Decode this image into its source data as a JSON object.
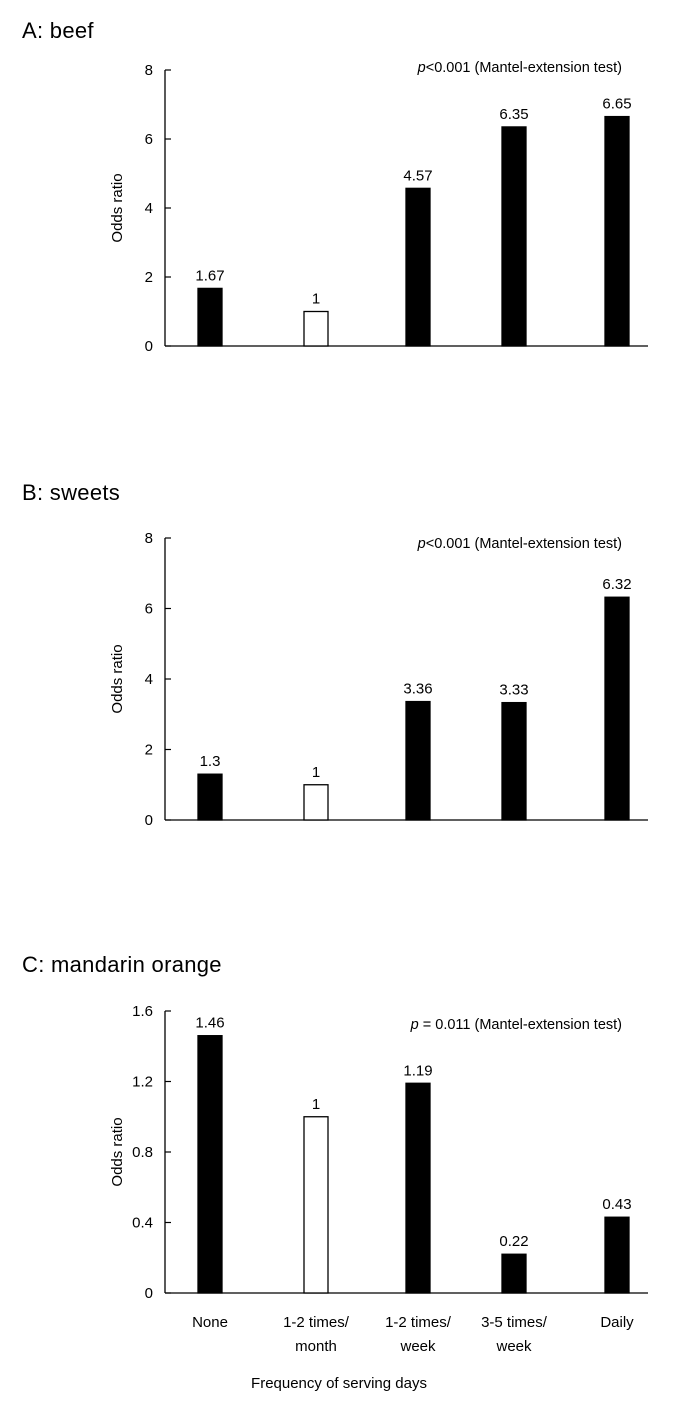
{
  "chart_data": [
    {
      "type": "bar",
      "title": "A: beef",
      "annotation_italic": "p",
      "annotation_rest": "<0.001 (Mantel-extension test)",
      "ylabel": "Odds ratio",
      "xlabel": "",
      "ylim": [
        0,
        8
      ],
      "yticks": [
        "0",
        "2",
        "4",
        "6",
        "8"
      ],
      "ytick_values": [
        0,
        2,
        4,
        6,
        8
      ],
      "categories": [
        "None",
        "1-2 times/ month",
        "1-2 times/ week",
        "3-5 times/ week",
        "Daily"
      ],
      "show_categories": false,
      "values": [
        1.67,
        1,
        4.57,
        6.35,
        6.65
      ],
      "value_labels": [
        "1.67",
        "1",
        "4.57",
        "6.35",
        "6.65"
      ],
      "bar_fill": [
        "#000000",
        "#ffffff",
        "#000000",
        "#000000",
        "#000000"
      ]
    },
    {
      "type": "bar",
      "title": "B: sweets",
      "annotation_italic": "p",
      "annotation_rest": "<0.001 (Mantel-extension test)",
      "ylabel": "Odds ratio",
      "xlabel": "",
      "ylim": [
        0,
        8
      ],
      "yticks": [
        "0",
        "2",
        "4",
        "6",
        "8"
      ],
      "ytick_values": [
        0,
        2,
        4,
        6,
        8
      ],
      "categories": [
        "None",
        "1-2 times/ month",
        "1-2 times/ week",
        "3-5 times/ week",
        "Daily"
      ],
      "show_categories": false,
      "values": [
        1.3,
        1,
        3.36,
        3.33,
        6.32
      ],
      "value_labels": [
        "1.3",
        "1",
        "3.36",
        "3.33",
        "6.32"
      ],
      "bar_fill": [
        "#000000",
        "#ffffff",
        "#000000",
        "#000000",
        "#000000"
      ]
    },
    {
      "type": "bar",
      "title": "C: mandarin orange",
      "annotation_italic": "p",
      "annotation_rest": " = 0.011 (Mantel-extension test)",
      "ylabel": "Odds ratio",
      "xlabel": "Frequency of serving days",
      "ylim": [
        0,
        1.6
      ],
      "yticks": [
        "0",
        "0.4",
        "0.8",
        "1.2",
        "1.6"
      ],
      "ytick_values": [
        0,
        0.4,
        0.8,
        1.2,
        1.6
      ],
      "categories": [
        "None",
        "1-2 times/ month",
        "1-2 times/ week",
        "3-5 times/ week",
        "Daily"
      ],
      "category_lines": [
        [
          "None"
        ],
        [
          "1-2 times/",
          "month"
        ],
        [
          "1-2 times/",
          "week"
        ],
        [
          "3-5 times/",
          "week"
        ],
        [
          "Daily"
        ]
      ],
      "show_categories": true,
      "values": [
        1.46,
        1,
        1.19,
        0.22,
        0.43
      ],
      "value_labels": [
        "1.46",
        "1",
        "1.19",
        "0.22",
        "0.43"
      ],
      "bar_fill": [
        "#000000",
        "#ffffff",
        "#000000",
        "#000000",
        "#000000"
      ]
    }
  ]
}
